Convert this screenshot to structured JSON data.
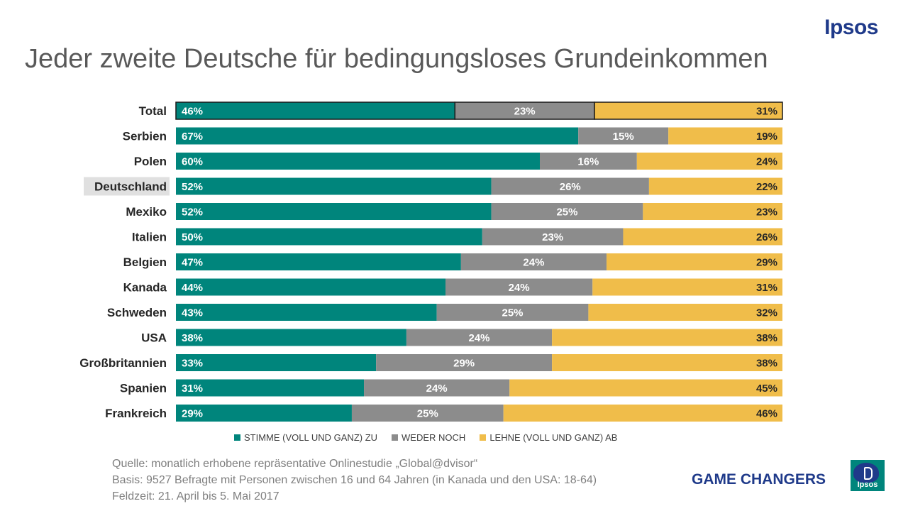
{
  "brand": "Ipsos",
  "title": "Jeder zweite Deutsche für bedingungsloses Grundeinkommen",
  "chart_data": {
    "type": "bar",
    "orientation": "horizontal",
    "stacked": true,
    "categories": [
      "Total",
      "Serbien",
      "Polen",
      "Deutschland",
      "Mexiko",
      "Italien",
      "Belgien",
      "Kanada",
      "Schweden",
      "USA",
      "Großbritannien",
      "Spanien",
      "Frankreich"
    ],
    "highlight": "Deutschland",
    "series": [
      {
        "name": "STIMME (VOLL UND GANZ) ZU",
        "color": "#00857c",
        "values": [
          46,
          67,
          60,
          52,
          52,
          50,
          47,
          44,
          43,
          38,
          33,
          31,
          29
        ]
      },
      {
        "name": "WEDER NOCH",
        "color": "#8c8c8c",
        "values": [
          23,
          15,
          16,
          26,
          25,
          23,
          24,
          24,
          25,
          24,
          29,
          24,
          25
        ]
      },
      {
        "name": "LEHNE (VOLL UND GANZ) AB",
        "color": "#f0bd4a",
        "values": [
          31,
          19,
          24,
          22,
          23,
          26,
          29,
          31,
          32,
          38,
          38,
          45,
          46
        ]
      }
    ],
    "legend_position": "bottom",
    "grid": false
  },
  "source_lines": [
    "Quelle: monatlich erhobene repräsentative Onlinestudie „Global@dvisor“",
    "Basis: 9527 Befragte mit Personen zwischen 16 und 64 Jahren (in Kanada und den USA: 18-64)",
    "Feldzeit: 21. April bis 5. Mai 2017"
  ],
  "footer": {
    "tagline": "GAME CHANGERS",
    "logo_text": "Ipsos"
  }
}
